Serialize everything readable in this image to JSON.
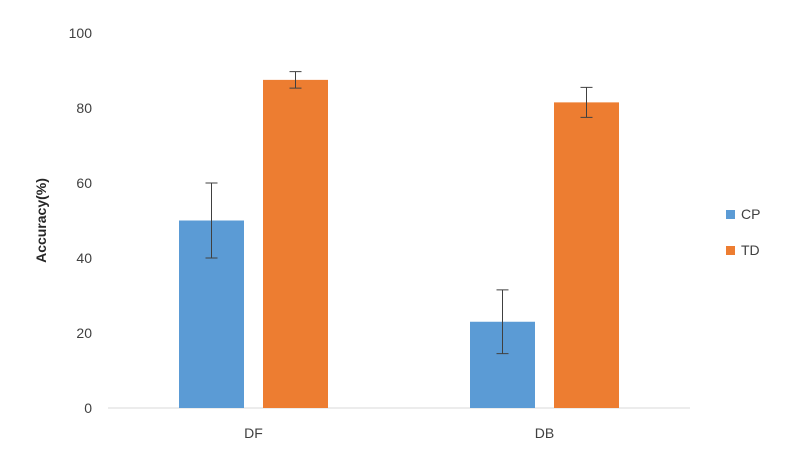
{
  "chart_data": {
    "type": "bar",
    "title": "",
    "xlabel": "",
    "ylabel": "Accuracy(%)",
    "ylim": [
      0,
      100
    ],
    "yticks": [
      0,
      20,
      40,
      60,
      80,
      100
    ],
    "categories": [
      "DF",
      "DB"
    ],
    "series": [
      {
        "name": "CP",
        "color": "#5b9bd5",
        "values": [
          50,
          23
        ],
        "errors": [
          10,
          8.5
        ]
      },
      {
        "name": "TD",
        "color": "#ed7d31",
        "values": [
          87.5,
          81.5
        ],
        "errors": [
          2.2,
          4
        ]
      }
    ],
    "grid": false,
    "legend_position": "right"
  }
}
